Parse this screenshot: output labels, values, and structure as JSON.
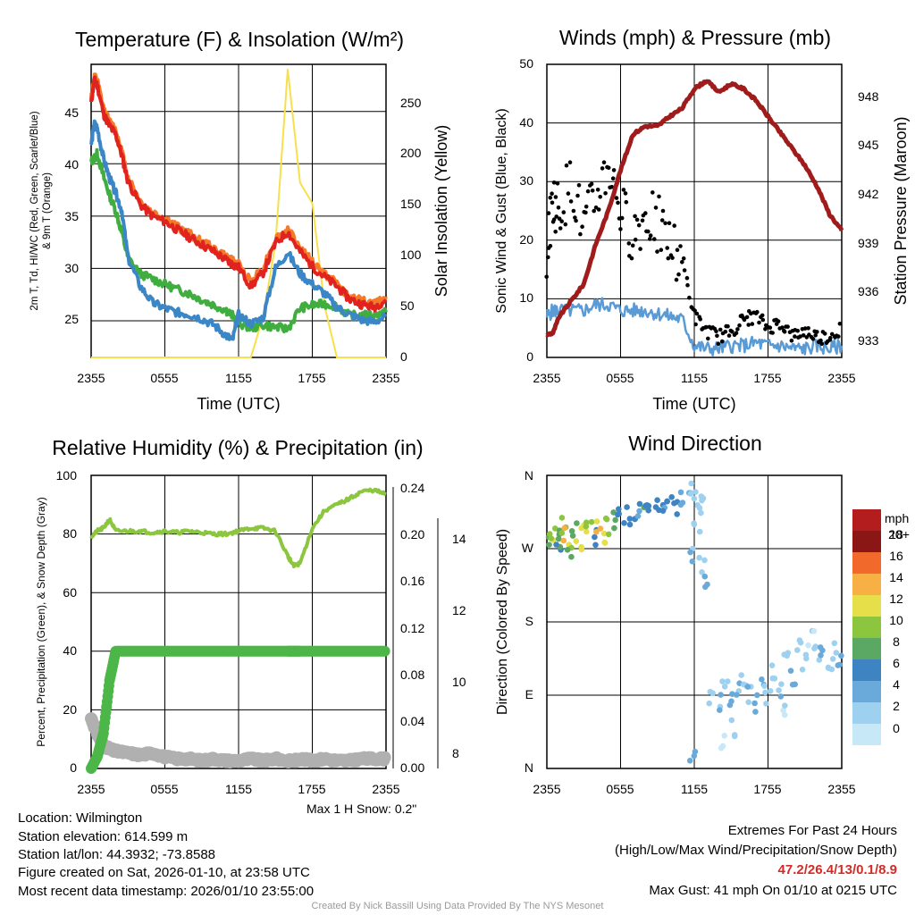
{
  "panels": {
    "temp": {
      "title": "Temperature (F) & Insolation (W/m²)",
      "ylabel_left_1": "2m T, Td, HI/WC (Red, Green, Scarlet/Blue)",
      "ylabel_left_2": "& 9m T (Orange)",
      "ylabel_right": "Solar Insolation (Yellow)",
      "xlabel": "Time (UTC)",
      "yticks_left": [
        "25",
        "30",
        "35",
        "40",
        "45"
      ],
      "yticks_right": [
        "0",
        "50",
        "100",
        "150",
        "200",
        "250"
      ]
    },
    "wind": {
      "title": "Winds (mph) & Pressure (mb)",
      "ylabel_left": "Sonic Wind & Gust (Blue, Black)",
      "ylabel_right": "Station Pressure (Maroon)",
      "xlabel": "Time (UTC)",
      "yticks_left": [
        "0",
        "10",
        "20",
        "30",
        "40",
        "50"
      ],
      "yticks_right": [
        "933",
        "936",
        "939",
        "942",
        "945",
        "948"
      ]
    },
    "rh": {
      "title": "Relative Humidity (%) & Precipitation (in)",
      "ylabel_left": "Percent, Precipitation (Green), & Snow Depth (Gray)",
      "yticks_left": [
        "0",
        "20",
        "40",
        "60",
        "80",
        "100"
      ],
      "yticks_right1": [
        "0.00",
        "0.04",
        "0.08",
        "0.12",
        "0.16",
        "0.20",
        "0.24"
      ],
      "yticks_right2": [
        "8",
        "10",
        "12",
        "14"
      ],
      "snow_note": "Max 1 H Snow: 0.2\""
    },
    "dir": {
      "title": "Wind Direction",
      "ylabel_left": "Direction (Colored By Speed)",
      "yticks_left": [
        "N",
        "E",
        "S",
        "W",
        "N"
      ],
      "legend_title": "mph",
      "legend_labels": [
        "0",
        "2",
        "4",
        "6",
        "8",
        "10",
        "12",
        "14",
        "16",
        "18",
        "20+"
      ]
    }
  },
  "x_ticks": [
    "2355",
    "0555",
    "1155",
    "1755",
    "2355"
  ],
  "colors": {
    "temp_red": "#e0231f",
    "temp_orange": "#f47a2a",
    "dewpoint_green": "#3fae3f",
    "windchill_blue": "#3b86c6",
    "insolation_yellow": "#f7e04b",
    "pressure_maroon": "#a01c1c",
    "wind_blue": "#5a9bd5",
    "gust_black": "#000000",
    "rh_green": "#8cc63f",
    "precip_green": "#4cb648",
    "snow_gray": "#b0b0b0",
    "extremes_red": "#d62a26",
    "credit_gray": "#9a9a9a",
    "legend": [
      "#c6e8f7",
      "#9ed1ef",
      "#6aaadb",
      "#3f84c2",
      "#5aa864",
      "#8cc63f",
      "#e6df4a",
      "#f7b044",
      "#f26a2b",
      "#d92a26",
      "#b31d1d",
      "#8b1616"
    ]
  },
  "chart_data": [
    {
      "type": "line",
      "title": "Temperature (F) & Insolation (W/m²)",
      "xlabel": "Time (UTC)",
      "ylabel": "2m T, Td, HI/WC (Red, Green, Scarlet/Blue) & 9m T (Orange)",
      "ylabel_right": "Solar Insolation (Yellow)",
      "x_range": [
        0,
        24
      ],
      "ylim": [
        21.5,
        49.5
      ],
      "ylim_right": [
        0,
        285
      ],
      "x": [
        0,
        0.25,
        0.5,
        1,
        1.5,
        2,
        2.5,
        3,
        4,
        5,
        6,
        7,
        8,
        9,
        10,
        11,
        11.5,
        12,
        13,
        14,
        15,
        16,
        17,
        18,
        19,
        20,
        21,
        22,
        23,
        24
      ],
      "series": [
        {
          "name": "2m Temperature (red)",
          "axis": "left",
          "values": [
            45.8,
            48,
            47.5,
            44.8,
            43.6,
            42.8,
            40.8,
            38.3,
            36.1,
            35,
            34.5,
            33.7,
            33,
            32.3,
            31.6,
            30.8,
            30.4,
            30.1,
            28.3,
            29.6,
            32.4,
            33.5,
            31.6,
            30.2,
            29.2,
            28.3,
            27.1,
            26.6,
            26.3,
            27
          ]
        },
        {
          "name": "9m Temperature (orange)",
          "axis": "left",
          "values": [
            46.3,
            48.3,
            47.9,
            45.3,
            44,
            43.2,
            41.2,
            38.7,
            36.4,
            35.3,
            34.8,
            34,
            33.3,
            32.6,
            31.9,
            31.1,
            30.7,
            30.4,
            28.8,
            30.1,
            32.8,
            33.7,
            32,
            30.6,
            29.5,
            28.6,
            27.3,
            26.9,
            26.6,
            27.3
          ]
        },
        {
          "name": "Dewpoint (green)",
          "axis": "left",
          "values": [
            40.2,
            40.5,
            41,
            38.8,
            37,
            35.5,
            33.4,
            31,
            29.5,
            29,
            28.5,
            28,
            27.6,
            27,
            26.5,
            26,
            25.5,
            24.8,
            24.3,
            24.6,
            24.4,
            24.2,
            26.2,
            26.5,
            26.6,
            26.4,
            25.5,
            25.5,
            25.6,
            25.8
          ]
        },
        {
          "name": "Wind Chill (blue)",
          "axis": "left",
          "values": [
            41.8,
            43.8,
            43.4,
            40.5,
            38.6,
            37.2,
            35.5,
            31,
            28.3,
            26.7,
            26.2,
            25.8,
            25.6,
            25.2,
            24.6,
            23.6,
            23.1,
            25.6,
            24.7,
            25.3,
            30,
            31.5,
            29.5,
            28.5,
            27.6,
            26.3,
            25.6,
            25.1,
            24.9,
            25.4
          ]
        },
        {
          "name": "Solar Insolation (yellow)",
          "axis": "right",
          "values": [
            0,
            0,
            0,
            0,
            0,
            0,
            0,
            0,
            0,
            0,
            0,
            0,
            0,
            0,
            0,
            0,
            0,
            0,
            0,
            40,
            110,
            280,
            170,
            150,
            50,
            0,
            0,
            0,
            0,
            0
          ]
        }
      ]
    },
    {
      "type": "line",
      "title": "Winds (mph) & Pressure (mb)",
      "xlabel": "Time (UTC)",
      "ylabel": "Sonic Wind & Gust (Blue, Black)",
      "ylabel_right": "Station Pressure (Maroon)",
      "x_range": [
        0,
        24
      ],
      "ylim": [
        0,
        50
      ],
      "ylim_right": [
        932,
        950
      ],
      "x": [
        0,
        0.5,
        1,
        2,
        3,
        4,
        5,
        6,
        7,
        8,
        9,
        10,
        11,
        12,
        13,
        14,
        15,
        16,
        17,
        18,
        19,
        20,
        21,
        22,
        23,
        24
      ],
      "series": [
        {
          "name": "Sonic Wind (blue)",
          "axis": "left",
          "values": [
            7,
            8,
            8,
            8,
            8,
            9,
            9,
            8,
            8,
            8,
            7.5,
            7,
            6.5,
            2,
            1.5,
            1.5,
            2,
            2,
            2.5,
            2,
            2,
            1.5,
            1.5,
            2,
            1.5,
            2
          ]
        },
        {
          "name": "Gust (black)",
          "axis": "left",
          "values": [
            18,
            27,
            25,
            30,
            22,
            27,
            33,
            25,
            21,
            24,
            23,
            19,
            17,
            7,
            4.5,
            3.5,
            4.5,
            6.5,
            7,
            5,
            6,
            3.5,
            4.5,
            3.5,
            3.5,
            5
          ]
        },
        {
          "name": "Station Pressure (maroon)",
          "axis": "right",
          "values": [
            933.4,
            933.5,
            934.5,
            935.5,
            936.5,
            939,
            941,
            943.5,
            945.7,
            946.2,
            946.2,
            946.8,
            947.3,
            948.5,
            949,
            948.3,
            948.8,
            948.5,
            947.8,
            946.8,
            945.8,
            944.8,
            943.8,
            942.5,
            940.8,
            939.8
          ]
        }
      ]
    },
    {
      "type": "line",
      "title": "Relative Humidity (%) & Precipitation (in)",
      "ylabel": "Percent, Precipitation (Green), & Snow Depth (Gray)",
      "x_range": [
        0,
        24
      ],
      "ylim": [
        0,
        100
      ],
      "ylim_right_precip": [
        0,
        0.25
      ],
      "ylim_right_snow": [
        7.6,
        15.2
      ],
      "x": [
        0,
        0.5,
        1,
        1.5,
        2,
        3,
        4,
        5,
        6,
        7,
        8,
        9,
        10,
        11,
        12,
        13,
        14,
        15,
        16,
        16.5,
        17,
        18,
        19,
        20,
        21,
        22,
        23,
        24
      ],
      "series": [
        {
          "name": "Relative Humidity (green line)",
          "axis": "left",
          "values": [
            79,
            81,
            82,
            85,
            81,
            81,
            81,
            80.5,
            81,
            80.5,
            81,
            80.5,
            80,
            80,
            81,
            82,
            82,
            81,
            72.5,
            69,
            70,
            82,
            88,
            90,
            92,
            94.5,
            95,
            93.5
          ]
        },
        {
          "name": "Precipitation (dark green)",
          "axis": "right_precip",
          "values": [
            0,
            0.01,
            0.03,
            0.075,
            0.1,
            0.1,
            0.1,
            0.1,
            0.1,
            0.1,
            0.1,
            0.1,
            0.1,
            0.1,
            0.1,
            0.1,
            0.1,
            0.1,
            0.1,
            0.1,
            0.1,
            0.1,
            0.1,
            0.1,
            0.1,
            0.1,
            0.1,
            0.1
          ]
        },
        {
          "name": "Snow Depth (gray)",
          "axis": "right_snow",
          "values": [
            8.9,
            8.5,
            8.2,
            8.1,
            8.05,
            8,
            7.95,
            8,
            7.9,
            7.85,
            7.85,
            7.8,
            7.85,
            7.8,
            7.8,
            7.85,
            7.8,
            7.85,
            7.8,
            7.8,
            7.85,
            7.8,
            7.85,
            7.8,
            7.8,
            7.85,
            7.85,
            7.85
          ]
        }
      ],
      "snow_note": "Max 1 H Snow: 0.2\""
    },
    {
      "type": "scatter",
      "title": "Wind Direction",
      "ylabel": "Direction (Colored By Speed)",
      "x_range": [
        0,
        24
      ],
      "y_categories": [
        "N",
        "E",
        "S",
        "W",
        "N"
      ],
      "ylim_degrees": [
        0,
        360
      ],
      "color_scale_mph": [
        "0",
        "2",
        "4",
        "6",
        "8",
        "10",
        "12",
        "14",
        "16",
        "18",
        "20+"
      ],
      "points": [
        [
          0.2,
          280,
          9
        ],
        [
          0.5,
          285,
          11
        ],
        [
          0.8,
          290,
          8
        ],
        [
          1.0,
          275,
          7
        ],
        [
          1.3,
          300,
          10
        ],
        [
          1.6,
          285,
          13
        ],
        [
          1.9,
          270,
          9
        ],
        [
          2.2,
          295,
          8
        ],
        [
          2.6,
          280,
          12
        ],
        [
          3.0,
          292,
          11
        ],
        [
          3.4,
          305,
          10
        ],
        [
          3.8,
          285,
          7
        ],
        [
          4.2,
          300,
          13
        ],
        [
          4.6,
          288,
          12
        ],
        [
          5.0,
          298,
          9
        ],
        [
          5.5,
          305,
          8
        ],
        [
          6.0,
          308,
          6
        ],
        [
          6.5,
          312,
          7
        ],
        [
          7.0,
          310,
          6
        ],
        [
          7.5,
          316,
          5
        ],
        [
          8.0,
          313,
          7
        ],
        [
          8.5,
          318,
          6
        ],
        [
          9.0,
          322,
          6
        ],
        [
          9.5,
          318,
          5
        ],
        [
          10.0,
          325,
          6
        ],
        [
          10.5,
          322,
          5
        ],
        [
          11.0,
          330,
          4
        ],
        [
          11.5,
          335,
          3
        ],
        [
          12.0,
          340,
          2
        ],
        [
          12.2,
          300,
          3
        ],
        [
          12.5,
          320,
          2
        ],
        [
          12.8,
          335,
          2
        ],
        [
          11.8,
          260,
          3
        ],
        [
          12.6,
          250,
          2
        ],
        [
          12.9,
          230,
          3
        ],
        [
          11.9,
          10,
          4
        ],
        [
          13.3,
          90,
          2
        ],
        [
          14.0,
          80,
          3
        ],
        [
          14.5,
          100,
          2
        ],
        [
          15.0,
          85,
          4
        ],
        [
          15.5,
          95,
          3
        ],
        [
          16.0,
          110,
          2
        ],
        [
          16.5,
          90,
          3
        ],
        [
          17.0,
          80,
          4
        ],
        [
          17.5,
          100,
          3
        ],
        [
          18.0,
          88,
          2
        ],
        [
          18.5,
          120,
          2
        ],
        [
          19.0,
          95,
          3
        ],
        [
          19.5,
          140,
          2
        ],
        [
          20.0,
          110,
          3
        ],
        [
          20.5,
          150,
          2
        ],
        [
          21.0,
          130,
          2
        ],
        [
          21.5,
          160,
          1
        ],
        [
          22.0,
          140,
          2
        ],
        [
          22.5,
          150,
          3
        ],
        [
          23.0,
          120,
          2
        ],
        [
          23.5,
          145,
          2
        ],
        [
          23.8,
          130,
          3
        ],
        [
          14.2,
          30,
          1
        ],
        [
          15.2,
          50,
          2
        ],
        [
          19.2,
          70,
          1
        ]
      ],
      "legend_title": "mph"
    }
  ],
  "info": {
    "location": "Location: Wilmington",
    "elevation": "Station elevation: 614.599 m",
    "latlon": "Station lat/lon: 44.3932; -73.8588",
    "created": "Figure created on Sat, 2026-01-10, at 23:58 UTC",
    "recent": "Most recent data timestamp: 2026/01/10 23:55:00"
  },
  "extremes": {
    "title": "Extremes For Past 24 Hours",
    "subtitle": "(High/Low/Max Wind/Precipitation/Snow Depth)",
    "values": "47.2/26.4/13/0.1/8.9",
    "gust": "Max Gust: 41 mph On 01/10 at 0215 UTC"
  },
  "credit": "Created By Nick Bassill Using Data Provided By The NYS Mesonet"
}
